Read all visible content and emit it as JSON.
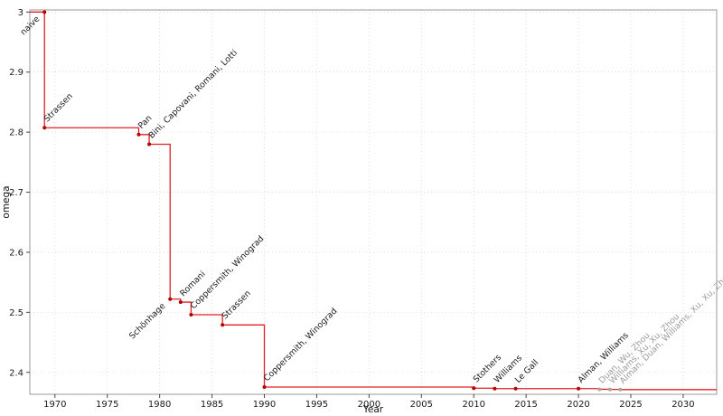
{
  "figure": {
    "title": "",
    "xlabel": "Year",
    "ylabel": "omega"
  },
  "chart_data": {
    "type": "line",
    "subtype": "step-post",
    "title": "",
    "xlabel": "Year",
    "ylabel": "omega",
    "xlim": [
      1967.6,
      2033.2
    ],
    "ylim": [
      2.3635,
      3.0035
    ],
    "x_ticks": [
      1970,
      1975,
      1980,
      1985,
      1990,
      1995,
      2000,
      2005,
      2010,
      2015,
      2020,
      2025,
      2030
    ],
    "y_ticks": [
      2.4,
      2.5,
      2.6,
      2.7,
      2.8,
      2.9,
      3
    ],
    "y_tick_labels": [
      "2.4",
      "2.5",
      "2.6",
      "2.7",
      "2.8",
      "2.9",
      "3"
    ],
    "grid": true,
    "legend": "none",
    "colors": {
      "line": "#e12222",
      "marker": "#b50000",
      "marker_muted": "#a6a6a6",
      "label": "#1a1a1a",
      "label_muted": "#9b9b9b",
      "grid": "#c9c9c9",
      "frame": "#9a9a9a",
      "tick_text": "#1a1a1a",
      "axis_title": "#111111"
    },
    "points": [
      {
        "year": 1969,
        "omega": 3.0,
        "label": "naive",
        "anchor": "end",
        "muted": false
      },
      {
        "year": 1969,
        "omega": 2.8074,
        "label": "Strassen",
        "anchor": "start",
        "muted": false
      },
      {
        "year": 1978,
        "omega": 2.796,
        "label": "Pan",
        "anchor": "start",
        "muted": false
      },
      {
        "year": 1979,
        "omega": 2.7799,
        "label": "Bini, Capovani, Romani, Lotti",
        "anchor": "start",
        "muted": false
      },
      {
        "year": 1981,
        "omega": 2.522,
        "label": "Schönhage",
        "anchor": "end",
        "muted": false
      },
      {
        "year": 1982,
        "omega": 2.517,
        "label": "Romani",
        "anchor": "start",
        "muted": false
      },
      {
        "year": 1983,
        "omega": 2.496,
        "label": "Coppersmith, Winograd",
        "anchor": "start",
        "muted": false
      },
      {
        "year": 1986,
        "omega": 2.479,
        "label": "Strassen",
        "anchor": "start",
        "muted": false
      },
      {
        "year": 1990,
        "omega": 2.3755,
        "label": "Coppersmith, Winograd",
        "anchor": "start",
        "muted": false
      },
      {
        "year": 2010,
        "omega": 2.3737,
        "label": "Stothers",
        "anchor": "start",
        "muted": false
      },
      {
        "year": 2012,
        "omega": 2.3729,
        "label": "Williams",
        "anchor": "start",
        "muted": false
      },
      {
        "year": 2014,
        "omega": 2.3728639,
        "label": "Le Gall",
        "anchor": "start",
        "muted": false
      },
      {
        "year": 2020,
        "omega": 2.3728596,
        "label": "Alman, Williams",
        "anchor": "start",
        "muted": false
      },
      {
        "year": 2022,
        "omega": 2.371866,
        "label": "Duan, Wu, Zhou",
        "anchor": "start",
        "muted": true
      },
      {
        "year": 2023,
        "omega": 2.371552,
        "label": "Williams, Xu, Xu, Zhou",
        "anchor": "start",
        "muted": true
      },
      {
        "year": 2024,
        "omega": 2.371339,
        "label": "Alman, Duan, Williams, Xu, Xu, Zhou",
        "anchor": "start",
        "muted": true
      }
    ]
  }
}
